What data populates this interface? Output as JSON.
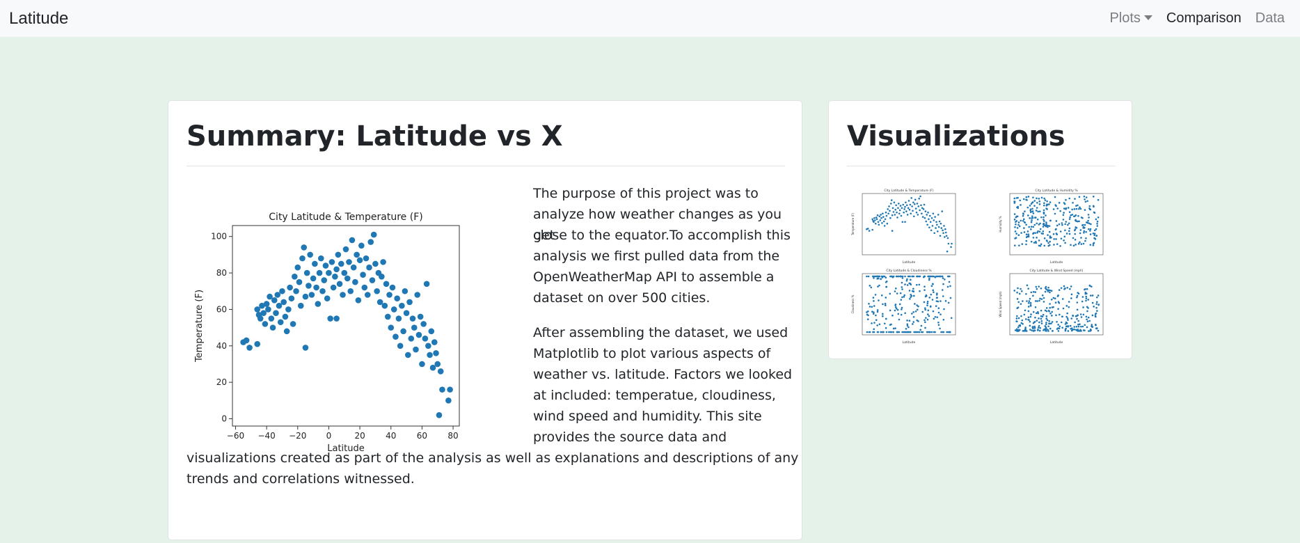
{
  "nav": {
    "brand": "Latitude",
    "plots": "Plots",
    "comparison": "Comparison",
    "data": "Data"
  },
  "summary": {
    "title": "Summary: Latitude vs X",
    "para1_lines": [
      "The purpose of this project was to",
      "analyze how weather changes as you get",
      "close to the equator.To accomplish this",
      "analysis we first pulled data from the",
      "OpenWeatherMap API to assemble a",
      "dataset on over 500 cities."
    ],
    "para2_lines": [
      "After assembling the dataset, we used",
      "Matplotlib to plot various aspects of",
      "weather vs. latitude. Factors we looked",
      "at included: temperatue, cloudiness,",
      "wind speed and humidity. This site",
      "provides the source data and"
    ],
    "para2_tail_lines": [
      "visualizations created as part of the analysis as well as explanations and descriptions of any",
      "trends and correlations witnessed."
    ]
  },
  "visualizations": {
    "title": "Visualizations"
  },
  "colors": {
    "background": "#e5f2ea",
    "navbar": "#f8f9fa",
    "point": "#1f77b4"
  },
  "chart_data": [
    {
      "type": "scatter",
      "title": "City Latitude & Temperature (F)",
      "xlabel": "Latitude",
      "ylabel": "Temperature (F)",
      "xlim": [
        -62,
        84
      ],
      "ylim": [
        -4,
        106
      ],
      "xticks": [
        -60,
        -40,
        -20,
        0,
        20,
        40,
        60,
        80
      ],
      "yticks": [
        0,
        20,
        40,
        60,
        80,
        100
      ],
      "xtick_labels": [
        "−60",
        "−40",
        "−20",
        "0",
        "20",
        "40",
        "60",
        "80"
      ],
      "ytick_labels": [
        "0",
        "20",
        "40",
        "60",
        "80",
        "100"
      ],
      "points": [
        [
          -55,
          42
        ],
        [
          -53,
          43
        ],
        [
          -51,
          39
        ],
        [
          -46,
          41
        ],
        [
          -46,
          60
        ],
        [
          -45,
          57
        ],
        [
          -44,
          55
        ],
        [
          -43,
          62
        ],
        [
          -42,
          58
        ],
        [
          -41,
          52
        ],
        [
          -40,
          63
        ],
        [
          -39,
          60
        ],
        [
          -38,
          67
        ],
        [
          -37,
          55
        ],
        [
          -36,
          50
        ],
        [
          -35,
          65
        ],
        [
          -34,
          58
        ],
        [
          -33,
          68
        ],
        [
          -32,
          62
        ],
        [
          -31,
          53
        ],
        [
          -30,
          70
        ],
        [
          -29,
          64
        ],
        [
          -28,
          56
        ],
        [
          -27,
          48
        ],
        [
          -26,
          60
        ],
        [
          -25,
          72
        ],
        [
          -24,
          66
        ],
        [
          -23,
          52
        ],
        [
          -22,
          78
        ],
        [
          -21,
          70
        ],
        [
          -20,
          83
        ],
        [
          -19,
          75
        ],
        [
          -18,
          62
        ],
        [
          -17,
          88
        ],
        [
          -16,
          94
        ],
        [
          -15,
          67
        ],
        [
          -15,
          39
        ],
        [
          -14,
          80
        ],
        [
          -13,
          73
        ],
        [
          -12,
          90
        ],
        [
          -11,
          68
        ],
        [
          -10,
          77
        ],
        [
          -9,
          85
        ],
        [
          -8,
          72
        ],
        [
          -7,
          63
        ],
        [
          -6,
          80
        ],
        [
          -5,
          88
        ],
        [
          -4,
          70
        ],
        [
          -3,
          76
        ],
        [
          -2,
          84
        ],
        [
          -1,
          66
        ],
        [
          0,
          80
        ],
        [
          1,
          55
        ],
        [
          2,
          86
        ],
        [
          3,
          72
        ],
        [
          4,
          78
        ],
        [
          5,
          82
        ],
        [
          5,
          55
        ],
        [
          6,
          90
        ],
        [
          7,
          74
        ],
        [
          8,
          85
        ],
        [
          9,
          68
        ],
        [
          10,
          80
        ],
        [
          11,
          93
        ],
        [
          12,
          77
        ],
        [
          13,
          86
        ],
        [
          14,
          70
        ],
        [
          15,
          98
        ],
        [
          16,
          83
        ],
        [
          17,
          75
        ],
        [
          18,
          90
        ],
        [
          19,
          65
        ],
        [
          20,
          87
        ],
        [
          21,
          95
        ],
        [
          22,
          79
        ],
        [
          23,
          72
        ],
        [
          24,
          88
        ],
        [
          25,
          68
        ],
        [
          26,
          83
        ],
        [
          27,
          97
        ],
        [
          28,
          76
        ],
        [
          29,
          101
        ],
        [
          30,
          85
        ],
        [
          31,
          70
        ],
        [
          32,
          80
        ],
        [
          33,
          64
        ],
        [
          34,
          78
        ],
        [
          35,
          86
        ],
        [
          36,
          62
        ],
        [
          37,
          74
        ],
        [
          38,
          56
        ],
        [
          39,
          68
        ],
        [
          40,
          50
        ],
        [
          41,
          72
        ],
        [
          42,
          60
        ],
        [
          43,
          45
        ],
        [
          44,
          66
        ],
        [
          45,
          55
        ],
        [
          46,
          40
        ],
        [
          47,
          62
        ],
        [
          48,
          48
        ],
        [
          49,
          70
        ],
        [
          50,
          58
        ],
        [
          51,
          35
        ],
        [
          52,
          64
        ],
        [
          53,
          44
        ],
        [
          54,
          55
        ],
        [
          55,
          50
        ],
        [
          56,
          38
        ],
        [
          57,
          68
        ],
        [
          58,
          46
        ],
        [
          59,
          56
        ],
        [
          60,
          30
        ],
        [
          61,
          52
        ],
        [
          62,
          44
        ],
        [
          63,
          74
        ],
        [
          64,
          40
        ],
        [
          65,
          35
        ],
        [
          66,
          48
        ],
        [
          67,
          28
        ],
        [
          68,
          42
        ],
        [
          69,
          36
        ],
        [
          70,
          30
        ],
        [
          71,
          2
        ],
        [
          72,
          26
        ],
        [
          73,
          16
        ],
        [
          77,
          10
        ],
        [
          78,
          16
        ]
      ]
    },
    {
      "type": "scatter",
      "title": "City Latitude & Temperature (F)",
      "xlabel": "Latitude",
      "ylabel": "Temperature (F)",
      "xlim": [
        -62,
        84
      ],
      "ylim": [
        -4,
        106
      ]
    },
    {
      "type": "scatter",
      "title": "City Latitude & Humidity %",
      "xlabel": "Latitude",
      "ylabel": "Humidity %",
      "xlim": [
        -62,
        84
      ],
      "ylim": [
        0,
        105
      ]
    },
    {
      "type": "scatter",
      "title": "City Latitude & Cloudiness %",
      "xlabel": "Latitude",
      "ylabel": "Cloudiness %",
      "xlim": [
        -62,
        84
      ],
      "ylim": [
        -5,
        105
      ]
    },
    {
      "type": "scatter",
      "title": "City Latitude & Wind Speed (mph)",
      "xlabel": "Latitude",
      "ylabel": "Wind Speed (mph)",
      "xlim": [
        -62,
        84
      ],
      "ylim": [
        -1,
        15
      ]
    }
  ]
}
